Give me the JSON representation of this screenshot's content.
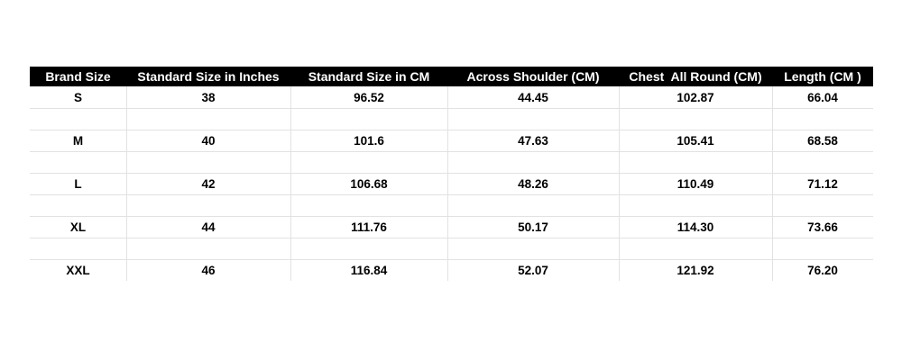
{
  "table": {
    "header": [
      "Brand Size",
      "Standard Size in Inches",
      "Standard Size in CM",
      "Across Shoulder (CM)",
      "Chest  All Round (CM)",
      "Length (CM )"
    ],
    "rows": [
      [
        "S",
        "38",
        "96.52",
        "44.45",
        "102.87",
        "66.04"
      ],
      [
        "M",
        "40",
        "101.6",
        "47.63",
        "105.41",
        "68.58"
      ],
      [
        "L",
        "42",
        "106.68",
        "48.26",
        "110.49",
        "71.12"
      ],
      [
        "XL",
        "44",
        "111.76",
        "50.17",
        "114.30",
        "73.66"
      ],
      [
        "XXL",
        "46",
        "116.84",
        "52.07",
        "121.92",
        "76.20"
      ]
    ]
  }
}
